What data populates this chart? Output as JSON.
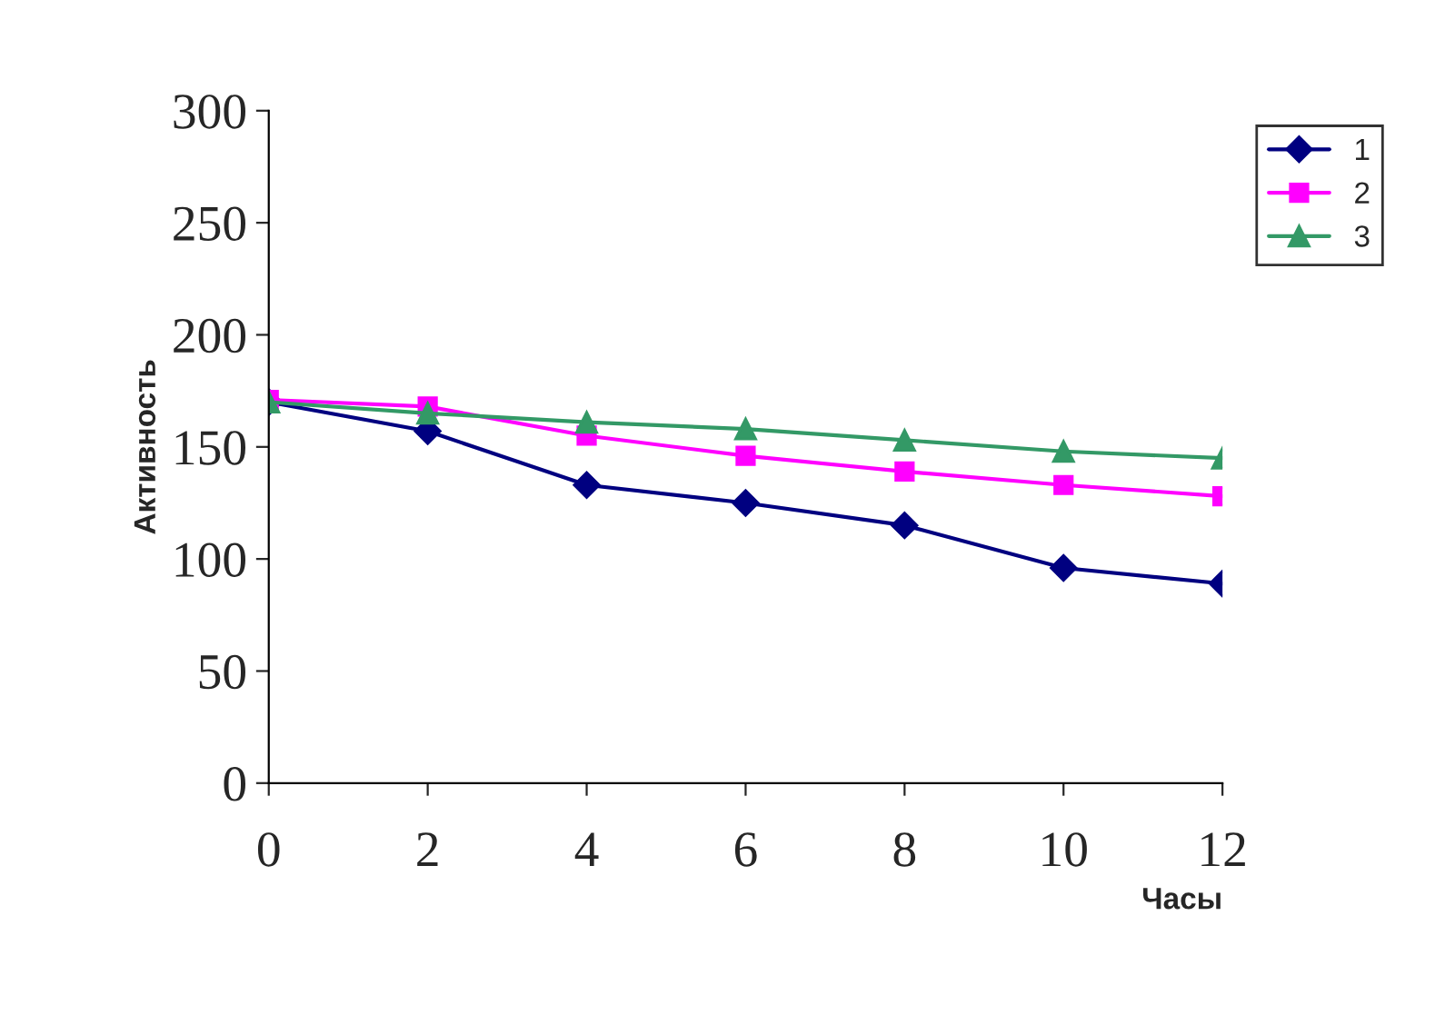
{
  "chart_data": {
    "type": "line",
    "xlabel": "Часы",
    "ylabel": "Активность",
    "x": [
      0,
      2,
      4,
      6,
      8,
      10,
      12
    ],
    "series": [
      {
        "name": "1",
        "color": "#000080",
        "marker": "diamond",
        "values": [
          170,
          157,
          133,
          125,
          115,
          96,
          89
        ]
      },
      {
        "name": "2",
        "color": "#ff00ff",
        "marker": "square",
        "values": [
          171,
          168,
          155,
          146,
          139,
          133,
          128
        ]
      },
      {
        "name": "3",
        "color": "#339966",
        "marker": "triangle",
        "values": [
          170,
          165,
          161,
          158,
          153,
          148,
          145
        ]
      }
    ],
    "xlim": [
      0,
      12
    ],
    "xticks": [
      0,
      2,
      4,
      6,
      8,
      10,
      12
    ],
    "ylim": [
      0,
      300
    ],
    "yticks": [
      0,
      50,
      100,
      150,
      200,
      250,
      300
    ],
    "grid": false,
    "legend": "top right",
    "line_style": "solid"
  }
}
